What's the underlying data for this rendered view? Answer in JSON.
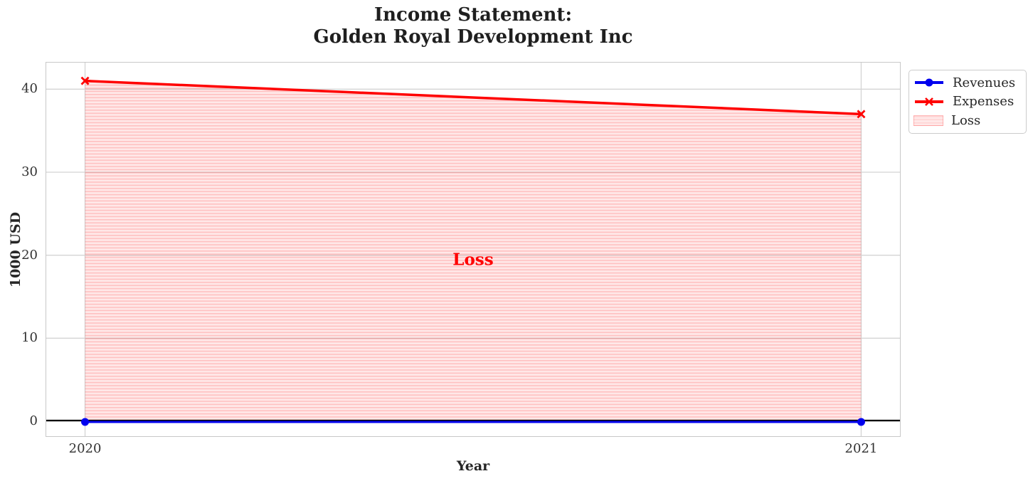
{
  "chart_data": {
    "type": "line",
    "title_line1": "Income Statement:",
    "title_line2": "Golden Royal Development Inc",
    "xlabel": "Year",
    "ylabel": "1000 USD",
    "x": [
      2020,
      2021
    ],
    "series": [
      {
        "name": "Revenues",
        "values": [
          0,
          0
        ],
        "color": "#0000ee",
        "marker": "circle"
      },
      {
        "name": "Expenses",
        "values": [
          41,
          37
        ],
        "color": "#ff0000",
        "marker": "x"
      }
    ],
    "loss_area": {
      "label": "Loss",
      "between": [
        "Revenues",
        "Expenses"
      ],
      "fill_color": "rgba(255,0,0,0.09)",
      "stripe_color": "rgba(255,0,0,0.17)",
      "hatch": "-"
    },
    "annotation": {
      "text": "Loss",
      "x": 2020.5,
      "y": 19.5,
      "color": "#ff0000"
    },
    "zero_line_color": "#000000",
    "grid": true,
    "grid_color": "#d4d4d4",
    "xlim": [
      2019.95,
      2021.05
    ],
    "ylim": [
      -1.8,
      43.2
    ],
    "xticks": [
      2020,
      2021
    ],
    "xtick_labels": [
      "2020",
      "2021"
    ],
    "yticks": [
      0,
      10,
      20,
      30,
      40
    ],
    "ytick_labels": [
      "0",
      "10",
      "20",
      "30",
      "40"
    ],
    "legend": {
      "position": "upper-right-outside",
      "items": [
        "Revenues",
        "Expenses",
        "Loss"
      ]
    }
  }
}
